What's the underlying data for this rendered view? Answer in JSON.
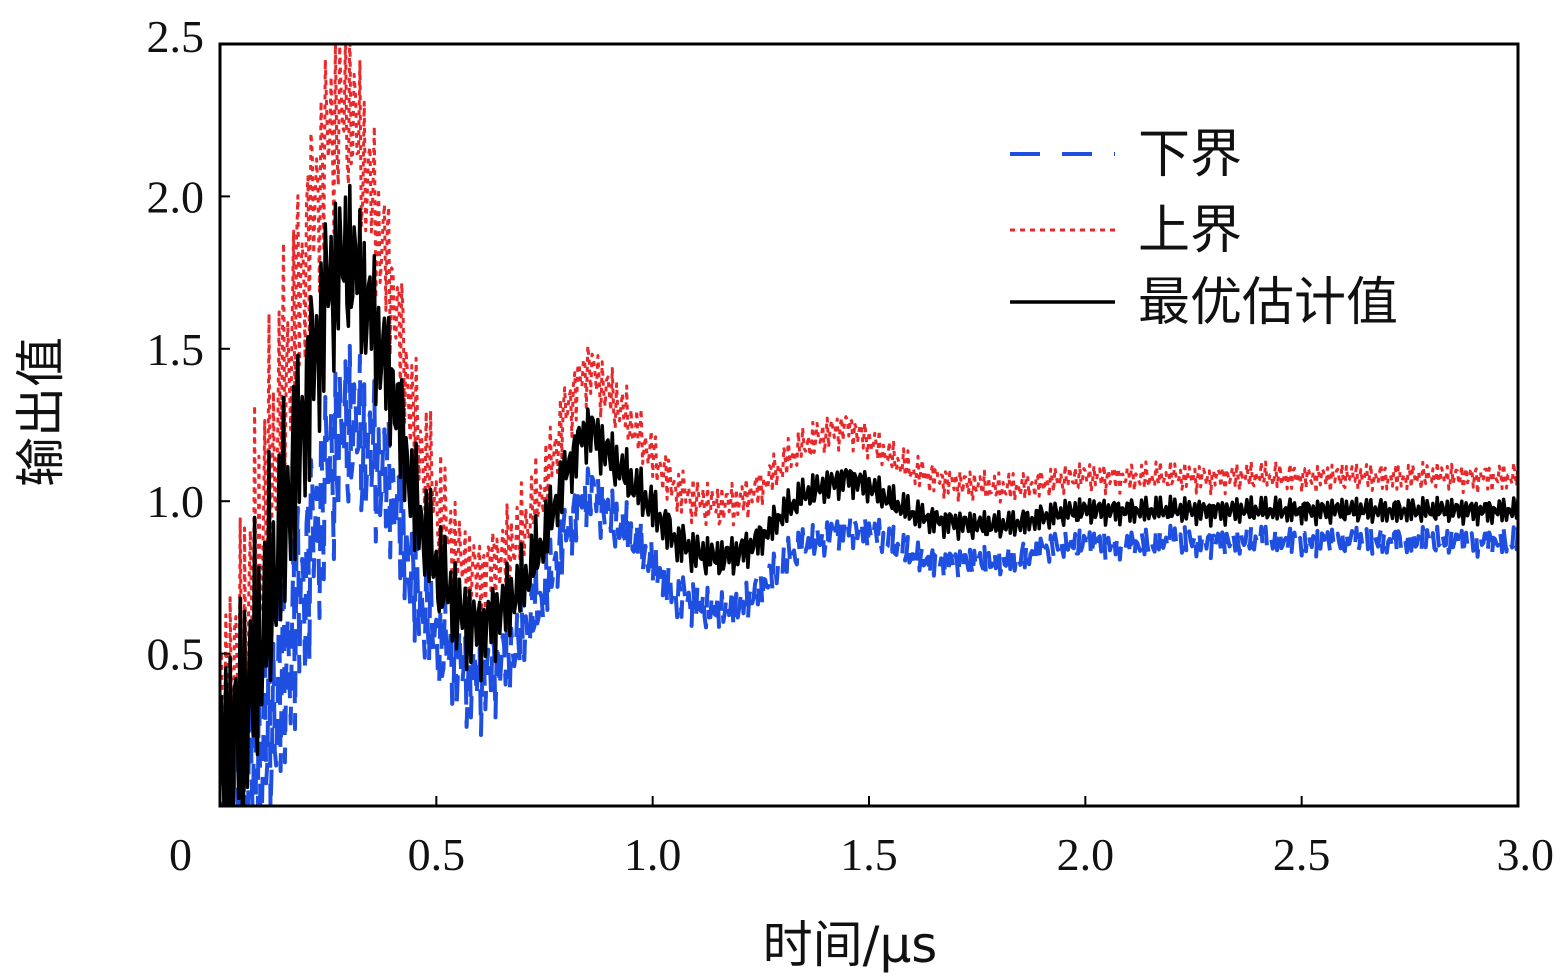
{
  "chart_data": {
    "type": "line",
    "title": "",
    "xlabel": "时间/μs",
    "ylabel": "输出值",
    "xlim": [
      0,
      3.0
    ],
    "ylim": [
      0,
      2.5
    ],
    "xticks": [
      {
        "value": 0,
        "label": "0"
      },
      {
        "value": 0.5,
        "label": "0.5"
      },
      {
        "value": 1.0,
        "label": "1.0"
      },
      {
        "value": 1.5,
        "label": "1.5"
      },
      {
        "value": 2.0,
        "label": "2.0"
      },
      {
        "value": 2.5,
        "label": "2.5"
      },
      {
        "value": 3.0,
        "label": "3.0"
      }
    ],
    "yticks": [
      {
        "value": 0.5,
        "label": "0.5"
      },
      {
        "value": 1.0,
        "label": "1.0"
      },
      {
        "value": 1.5,
        "label": "1.5"
      },
      {
        "value": 2.0,
        "label": "2.0"
      },
      {
        "value": 2.5,
        "label": "2.5"
      }
    ],
    "grid": false,
    "legend_position": "top-right",
    "x": [
      0.0,
      0.05,
      0.1,
      0.15,
      0.2,
      0.25,
      0.3,
      0.35,
      0.4,
      0.45,
      0.5,
      0.55,
      0.6,
      0.65,
      0.7,
      0.75,
      0.8,
      0.85,
      0.9,
      0.95,
      1.0,
      1.05,
      1.1,
      1.15,
      1.2,
      1.25,
      1.3,
      1.35,
      1.4,
      1.45,
      1.5,
      1.55,
      1.6,
      1.65,
      1.7,
      1.75,
      1.8,
      1.85,
      1.9,
      1.95,
      2.0,
      2.05,
      2.1,
      2.15,
      2.2,
      2.25,
      2.3,
      2.35,
      2.4,
      2.45,
      2.5,
      2.55,
      2.6,
      2.65,
      2.7,
      2.75,
      2.8,
      2.85,
      2.9,
      2.95,
      3.0
    ],
    "series": [
      {
        "name": "下界",
        "color": "#1f4fe0",
        "style": "dashed",
        "values": [
          0.0,
          0.05,
          0.2,
          0.45,
          0.8,
          1.1,
          1.25,
          1.15,
          1.05,
          0.72,
          0.55,
          0.45,
          0.42,
          0.48,
          0.55,
          0.7,
          0.9,
          1.05,
          0.95,
          0.88,
          0.8,
          0.7,
          0.66,
          0.64,
          0.66,
          0.72,
          0.8,
          0.85,
          0.88,
          0.92,
          0.9,
          0.86,
          0.82,
          0.8,
          0.8,
          0.8,
          0.8,
          0.82,
          0.84,
          0.86,
          0.86,
          0.86,
          0.86,
          0.86,
          0.87,
          0.87,
          0.87,
          0.87,
          0.87,
          0.87,
          0.87,
          0.87,
          0.87,
          0.87,
          0.87,
          0.87,
          0.87,
          0.87,
          0.87,
          0.87,
          0.87
        ]
      },
      {
        "name": "上界",
        "color": "#e8282a",
        "style": "dotted",
        "values": [
          0.2,
          0.45,
          0.9,
          1.4,
          1.85,
          2.2,
          2.3,
          2.0,
          1.7,
          1.25,
          1.0,
          0.8,
          0.75,
          0.82,
          0.9,
          1.05,
          1.3,
          1.45,
          1.35,
          1.25,
          1.15,
          1.05,
          1.0,
          0.98,
          1.0,
          1.05,
          1.12,
          1.18,
          1.22,
          1.25,
          1.2,
          1.14,
          1.1,
          1.08,
          1.06,
          1.05,
          1.04,
          1.05,
          1.06,
          1.07,
          1.08,
          1.08,
          1.08,
          1.08,
          1.08,
          1.08,
          1.08,
          1.08,
          1.08,
          1.08,
          1.08,
          1.08,
          1.08,
          1.08,
          1.08,
          1.08,
          1.08,
          1.08,
          1.08,
          1.08,
          1.08
        ]
      },
      {
        "name": "最优估计值",
        "color": "#000000",
        "style": "solid",
        "values": [
          0.1,
          0.25,
          0.55,
          0.95,
          1.35,
          1.7,
          1.8,
          1.6,
          1.38,
          1.0,
          0.78,
          0.63,
          0.58,
          0.65,
          0.72,
          0.88,
          1.1,
          1.25,
          1.15,
          1.06,
          0.98,
          0.88,
          0.83,
          0.81,
          0.83,
          0.88,
          0.96,
          1.02,
          1.05,
          1.08,
          1.05,
          1.0,
          0.96,
          0.94,
          0.93,
          0.92,
          0.92,
          0.93,
          0.95,
          0.96,
          0.97,
          0.97,
          0.97,
          0.97,
          0.97,
          0.97,
          0.97,
          0.97,
          0.97,
          0.97,
          0.97,
          0.97,
          0.97,
          0.97,
          0.97,
          0.97,
          0.97,
          0.97,
          0.97,
          0.97,
          0.97
        ]
      }
    ]
  }
}
